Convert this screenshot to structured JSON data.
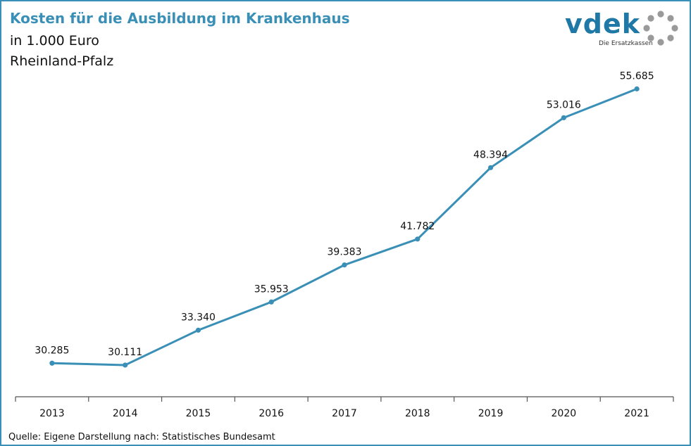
{
  "header": {
    "title": "Kosten für die Ausbildung im Krankenhaus",
    "subtitle_unit": "in 1.000 Euro",
    "subtitle_region": "Rheinland-Pfalz"
  },
  "logo": {
    "wordmark": "vdek",
    "tagline": "Die Ersatzkassen",
    "ring_icon": "dotted-ring-icon"
  },
  "colors": {
    "accent": "#3a8fb7",
    "logo": "#1f78a5",
    "line": "#3a8fb7"
  },
  "chart_data": {
    "type": "line",
    "title": "Kosten für die Ausbildung im Krankenhaus",
    "xlabel": "",
    "ylabel": "",
    "categories": [
      "2013",
      "2014",
      "2015",
      "2016",
      "2017",
      "2018",
      "2019",
      "2020",
      "2021"
    ],
    "values": [
      30285,
      30111,
      33340,
      35953,
      39383,
      41782,
      48394,
      53016,
      55685
    ],
    "value_labels": [
      "30.285",
      "30.111",
      "33.340",
      "35.953",
      "39.383",
      "41.782",
      "48.394",
      "53.016",
      "55.685"
    ],
    "ylim": [
      25000,
      57000
    ],
    "grid": false,
    "legend": "none"
  },
  "footer": {
    "source": "Quelle: Eigene Darstellung nach: Statistisches Bundesamt"
  }
}
